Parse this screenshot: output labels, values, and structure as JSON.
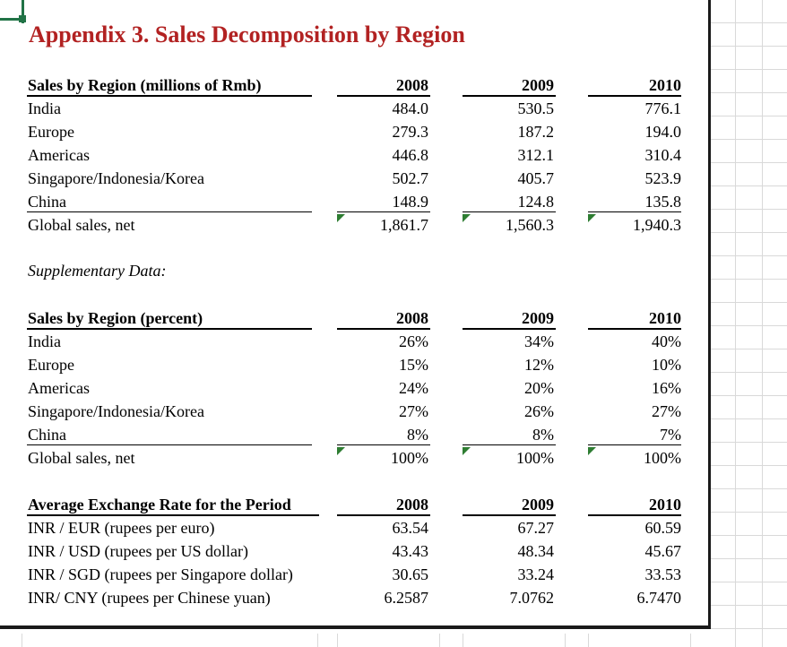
{
  "title": "Appendix 3. Sales Decomposition by Region",
  "years": [
    "2008",
    "2009",
    "2010"
  ],
  "sales_abs": {
    "header": "Sales by Region (millions of Rmb)",
    "rows": [
      {
        "label": "India",
        "values": [
          "484.0",
          "530.5",
          "776.1"
        ]
      },
      {
        "label": "Europe",
        "values": [
          "279.3",
          "187.2",
          "194.0"
        ]
      },
      {
        "label": "Americas",
        "values": [
          "446.8",
          "312.1",
          "310.4"
        ]
      },
      {
        "label": "Singapore/Indonesia/Korea",
        "values": [
          "502.7",
          "405.7",
          "523.9"
        ]
      },
      {
        "label": "China",
        "values": [
          "148.9",
          "124.8",
          "135.8"
        ]
      }
    ],
    "total": {
      "label": "Global sales, net",
      "values": [
        "1,861.7",
        "1,560.3",
        "1,940.3"
      ]
    }
  },
  "supplementary_label": "Supplementary Data:",
  "sales_pct": {
    "header": "Sales by Region (percent)",
    "rows": [
      {
        "label": "India",
        "values": [
          "26%",
          "34%",
          "40%"
        ]
      },
      {
        "label": "Europe",
        "values": [
          "15%",
          "12%",
          "10%"
        ]
      },
      {
        "label": "Americas",
        "values": [
          "24%",
          "20%",
          "16%"
        ]
      },
      {
        "label": "Singapore/Indonesia/Korea",
        "values": [
          "27%",
          "26%",
          "27%"
        ]
      },
      {
        "label": "China",
        "values": [
          "8%",
          "8%",
          "7%"
        ]
      }
    ],
    "total": {
      "label": "Global sales, net",
      "values": [
        "100%",
        "100%",
        "100%"
      ]
    }
  },
  "fx": {
    "header": "Average Exchange Rate for the Period",
    "rows": [
      {
        "label": "INR / EUR (rupees per euro)",
        "values": [
          "63.54",
          "67.27",
          "60.59"
        ]
      },
      {
        "label": "INR / USD (rupees per US dollar)",
        "values": [
          "43.43",
          "48.34",
          "45.67"
        ]
      },
      {
        "label": "INR / SGD (rupees per Singapore dollar)",
        "values": [
          "30.65",
          "33.24",
          "33.53"
        ]
      },
      {
        "label": "INR/ CNY (rupees per Chinese yuan)",
        "values": [
          "6.2587",
          "7.0762",
          "6.7470"
        ]
      }
    ]
  },
  "colors": {
    "title": "#b22222",
    "marker": "#2e7d32",
    "selection": "#217346"
  }
}
